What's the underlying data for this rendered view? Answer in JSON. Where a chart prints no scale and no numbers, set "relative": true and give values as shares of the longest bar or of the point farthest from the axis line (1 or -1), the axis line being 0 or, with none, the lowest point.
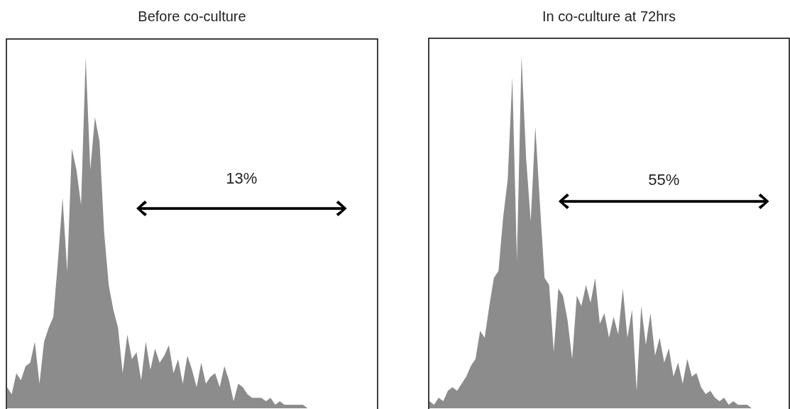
{
  "chart_data": [
    {
      "type": "area",
      "title": "Before  co-culture",
      "relative": true,
      "annotations": [
        "13%"
      ],
      "categories": [
        null,
        null,
        null,
        null,
        null,
        null,
        null,
        null,
        null,
        null,
        null,
        null,
        null,
        null,
        null,
        null,
        null,
        null,
        null,
        null,
        null,
        null,
        null,
        null,
        null,
        null,
        null,
        null,
        null,
        null,
        null,
        null,
        null,
        null,
        null,
        null,
        null,
        null,
        null,
        null,
        null,
        null,
        null,
        null,
        null,
        null,
        null,
        null,
        null,
        null,
        null,
        null,
        null,
        null,
        null,
        null,
        null,
        null,
        null,
        null,
        null,
        null,
        null,
        null,
        null,
        null,
        null,
        null,
        null,
        null,
        null,
        null,
        null,
        null,
        null,
        null,
        null,
        null,
        null,
        null,
        null
      ],
      "series": [
        {
          "color": "#8c8c8c",
          "values": [
            0.06,
            0.04,
            0.1,
            0.08,
            0.12,
            0.13,
            0.19,
            0.07,
            0.19,
            0.23,
            0.26,
            0.42,
            0.6,
            0.39,
            0.74,
            0.68,
            0.58,
            1.0,
            0.68,
            0.83,
            0.76,
            0.5,
            0.35,
            0.28,
            0.23,
            0.1,
            0.21,
            0.14,
            0.16,
            0.08,
            0.19,
            0.11,
            0.17,
            0.13,
            0.15,
            0.18,
            0.1,
            0.14,
            0.07,
            0.15,
            0.11,
            0.06,
            0.13,
            0.07,
            0.09,
            0.1,
            0.06,
            0.12,
            0.08,
            0.02,
            0.07,
            0.06,
            0.04,
            0.03,
            0.03,
            0.03,
            0.02,
            0.03,
            0.01,
            0.02,
            0.01,
            0.01,
            0.01,
            0.01,
            0.01,
            0,
            0,
            0,
            0,
            0,
            0,
            0,
            0,
            0,
            0,
            0,
            0,
            0,
            0,
            0,
            0
          ]
        }
      ]
    },
    {
      "type": "area",
      "title": "In co-culture at 72hrs",
      "relative": true,
      "annotations": [
        "55%"
      ],
      "categories": [
        null,
        null,
        null,
        null,
        null,
        null,
        null,
        null,
        null,
        null,
        null,
        null,
        null,
        null,
        null,
        null,
        null,
        null,
        null,
        null,
        null,
        null,
        null,
        null,
        null,
        null,
        null,
        null,
        null,
        null,
        null,
        null,
        null,
        null,
        null,
        null,
        null,
        null,
        null,
        null,
        null,
        null,
        null,
        null,
        null,
        null,
        null,
        null,
        null,
        null,
        null,
        null,
        null,
        null,
        null,
        null,
        null,
        null,
        null,
        null,
        null,
        null,
        null,
        null,
        null,
        null,
        null,
        null,
        null,
        null,
        null,
        null,
        null,
        null,
        null,
        null,
        null,
        null,
        null
      ],
      "series": [
        {
          "color": "#8c8c8c",
          "values": [
            0.02,
            0.01,
            0.03,
            0.02,
            0.05,
            0.06,
            0.05,
            0.07,
            0.09,
            0.12,
            0.14,
            0.22,
            0.2,
            0.29,
            0.37,
            0.39,
            0.54,
            0.65,
            0.94,
            0.42,
            1.0,
            0.71,
            0.53,
            0.8,
            0.58,
            0.37,
            0.35,
            0.16,
            0.34,
            0.32,
            0.25,
            0.14,
            0.32,
            0.29,
            0.35,
            0.3,
            0.37,
            0.24,
            0.27,
            0.2,
            0.26,
            0.21,
            0.34,
            0.2,
            0.28,
            0.05,
            0.29,
            0.18,
            0.27,
            0.15,
            0.2,
            0.13,
            0.17,
            0.09,
            0.13,
            0.07,
            0.14,
            0.09,
            0.1,
            0.06,
            0.04,
            0.05,
            0.03,
            0.02,
            0.03,
            0.01,
            0.02,
            0.01,
            0.01,
            0.01,
            0,
            0,
            0,
            0,
            0,
            0,
            0,
            0,
            0
          ]
        }
      ]
    }
  ]
}
